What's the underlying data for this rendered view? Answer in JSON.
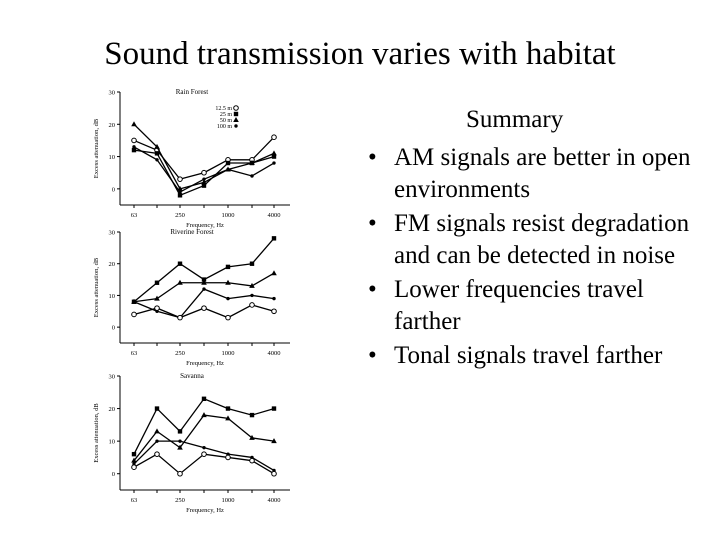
{
  "slide": {
    "title": "Sound transmission varies with habitat",
    "summary_heading": "Summary",
    "bullets": [
      "AM signals are better in open environments",
      "FM signals resist degradation and can be detected in noise",
      "Lower frequencies travel farther",
      "Tonal signals travel farther"
    ]
  },
  "chart_data": [
    {
      "type": "line",
      "title": "Rain Forest",
      "xlabel": "Frequency, Hz",
      "ylabel": "Excess attenuation, dB",
      "x": [
        63,
        125,
        250,
        500,
        1000,
        2000,
        4000
      ],
      "xticks": [
        "63",
        "250",
        "1000",
        "4000"
      ],
      "yticks": [
        0,
        10,
        20,
        30
      ],
      "ylim": [
        -5,
        30
      ],
      "legend_position": "top-right",
      "series": [
        {
          "name": "12.5 m",
          "marker": "circle",
          "values": [
            15,
            12,
            3,
            5,
            9,
            9,
            16
          ]
        },
        {
          "name": "25 m",
          "marker": "square",
          "values": [
            12,
            11,
            -2,
            1,
            8,
            8,
            10
          ]
        },
        {
          "name": "50 m",
          "marker": "triangle",
          "values": [
            20,
            13,
            0,
            2,
            6,
            8,
            11
          ]
        },
        {
          "name": "100 m",
          "marker": "dot",
          "values": [
            13,
            9,
            -1,
            3,
            6,
            4,
            8
          ]
        }
      ]
    },
    {
      "type": "line",
      "title": "Riverine Forest",
      "xlabel": "Frequency, Hz",
      "ylabel": "Excess attenuation, dB",
      "x": [
        63,
        125,
        250,
        500,
        1000,
        2000,
        4000
      ],
      "xticks": [
        "63",
        "250",
        "1000",
        "4000"
      ],
      "yticks": [
        0,
        10,
        20,
        30
      ],
      "ylim": [
        -5,
        30
      ],
      "series": [
        {
          "marker": "square",
          "values": [
            8,
            14,
            20,
            15,
            19,
            20,
            28
          ]
        },
        {
          "marker": "triangle",
          "values": [
            8,
            9,
            14,
            14,
            14,
            13,
            17
          ]
        },
        {
          "marker": "dot",
          "values": [
            8,
            5,
            3,
            12,
            9,
            10,
            9
          ]
        },
        {
          "marker": "circle",
          "values": [
            4,
            6,
            3,
            6,
            3,
            7,
            5
          ]
        }
      ]
    },
    {
      "type": "line",
      "title": "Savanna",
      "xlabel": "Frequency, Hz",
      "ylabel": "Excess attenuation, dB",
      "x": [
        63,
        125,
        250,
        500,
        1000,
        2000,
        4000
      ],
      "xticks": [
        "63",
        "250",
        "1000",
        "4000"
      ],
      "yticks": [
        0,
        10,
        20,
        30
      ],
      "ylim": [
        -5,
        30
      ],
      "series": [
        {
          "marker": "square",
          "values": [
            6,
            20,
            13,
            23,
            20,
            18,
            20
          ]
        },
        {
          "marker": "triangle",
          "values": [
            4,
            13,
            8,
            18,
            17,
            11,
            10
          ]
        },
        {
          "marker": "dot",
          "values": [
            3,
            10,
            10,
            8,
            6,
            5,
            1
          ]
        },
        {
          "marker": "circle",
          "values": [
            2,
            6,
            0,
            6,
            5,
            4,
            0
          ]
        }
      ]
    }
  ]
}
